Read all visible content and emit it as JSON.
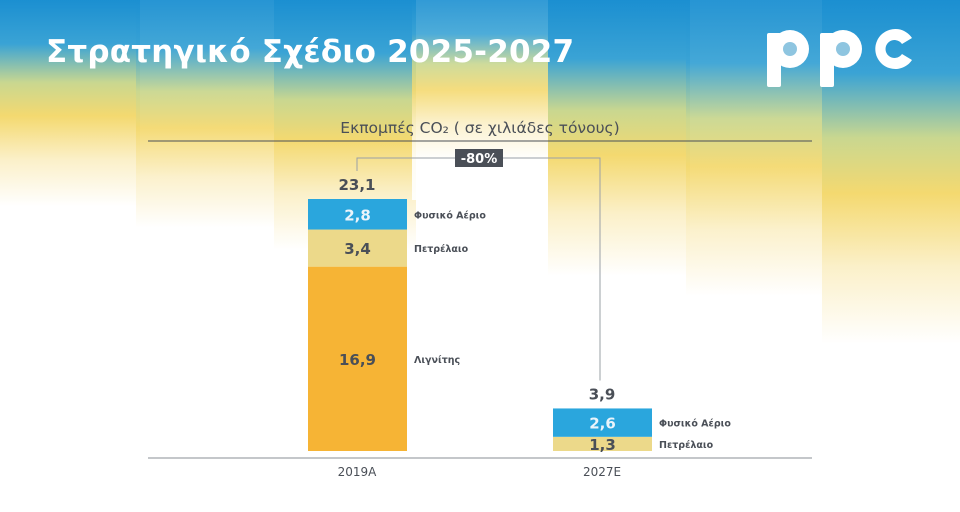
{
  "header": {
    "title": "Στρατηγικό Σχέδιο 2025-2027",
    "logo_text": "ppc"
  },
  "colors": {
    "gas": "#2aa6dd",
    "oil": "#ecd98a",
    "lignite": "#f6b435",
    "text": "#4a4f57",
    "badge_bg": "#4a4f57"
  },
  "chart_data": {
    "type": "bar",
    "stacked": true,
    "title": "Εκπομπές CO₂ ( σε χιλιάδες τόνους)",
    "categories": [
      "2019A",
      "2027E"
    ],
    "totals": [
      "23,1",
      "3,9"
    ],
    "series": [
      {
        "name": "Λιγνίτης",
        "values": [
          16.9,
          0
        ],
        "labels": [
          "16,9",
          ""
        ],
        "color_key": "lignite",
        "label_fill": "dark"
      },
      {
        "name": "Πετρέλαιο",
        "values": [
          3.4,
          1.3
        ],
        "labels": [
          "3,4",
          "1,3"
        ],
        "color_key": "oil",
        "label_fill": "dark"
      },
      {
        "name": "Φυσικό Αέριο",
        "values": [
          2.8,
          2.6
        ],
        "labels": [
          "2,8",
          "2,6"
        ],
        "color_key": "gas",
        "label_fill": "light"
      }
    ],
    "change_label": "-80%"
  }
}
